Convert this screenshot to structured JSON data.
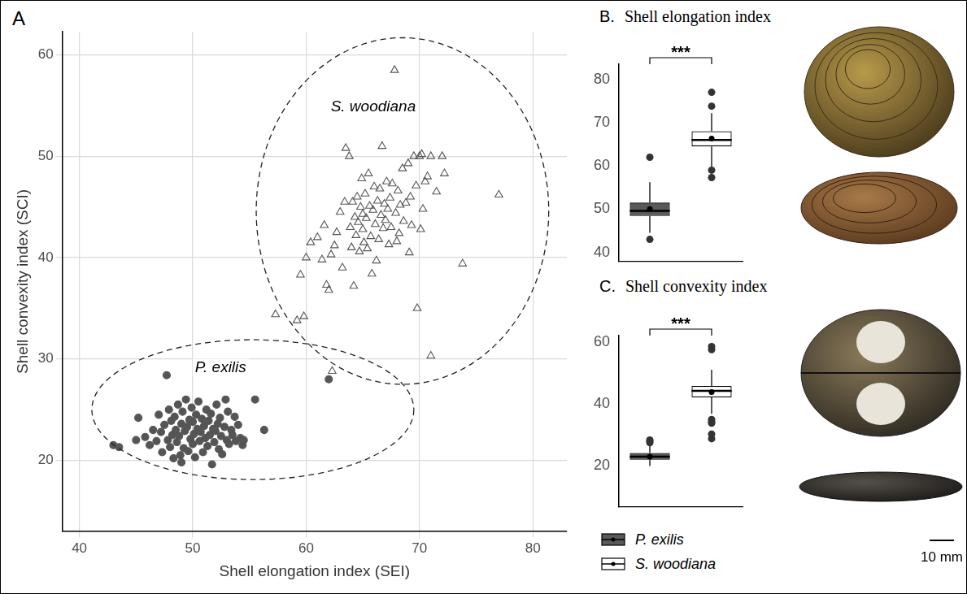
{
  "chart_data": [
    {
      "type": "scatter",
      "panel": "A",
      "x_label": "Shell elongation index (SEI)",
      "y_label": "Shell convexity index (SCI)",
      "xlim": [
        38.5,
        83
      ],
      "ylim": [
        13,
        62.3
      ],
      "xticks": [
        40,
        50,
        60,
        70,
        80
      ],
      "yticks": [
        20,
        30,
        40,
        50,
        60
      ],
      "grid": true,
      "series": [
        {
          "name": "P. exilis",
          "color": "#555555",
          "marker": "circle",
          "ellipse": {
            "center": [
              55.3,
              25.0
            ],
            "radii": [
              14.2,
              6.9
            ]
          },
          "x": [
            43,
            43.5,
            45,
            45.2,
            45.8,
            46.2,
            46.5,
            46.8,
            47,
            47.2,
            47.3,
            47.5,
            47.7,
            47.8,
            47.9,
            48,
            48.1,
            48.2,
            48.3,
            48.4,
            48.5,
            48.6,
            48.7,
            48.8,
            48.9,
            49,
            49,
            49.1,
            49.2,
            49.3,
            49.4,
            49.5,
            49.6,
            49.7,
            49.8,
            49.9,
            50,
            50,
            50.1,
            50.2,
            50.3,
            50.4,
            50.5,
            50.6,
            50.7,
            50.8,
            50.9,
            51,
            51.1,
            51.2,
            51.3,
            51.4,
            51.5,
            51.6,
            51.7,
            51.8,
            51.9,
            52,
            52.1,
            52.2,
            52.3,
            52.4,
            52.5,
            52.6,
            52.8,
            52.9,
            53,
            53.1,
            53.2,
            53.4,
            53.5,
            53.7,
            53.8,
            54,
            54.2,
            54.4,
            54.5,
            55.5,
            56.3,
            62
          ],
          "values": [
            21.5,
            21.3,
            22,
            24.2,
            22.3,
            21.5,
            23,
            21.9,
            24.5,
            22.8,
            20.8,
            23.5,
            28.4,
            22,
            25,
            21.3,
            23.9,
            22.5,
            20.2,
            24.3,
            23,
            21.8,
            25.5,
            22.4,
            20.5,
            23.6,
            19.8,
            24.8,
            21.2,
            22.9,
            26,
            23.3,
            20.9,
            24,
            22.1,
            25.2,
            21.6,
            23.8,
            22.6,
            20.3,
            24.5,
            23.1,
            25.8,
            21.9,
            22.8,
            24.1,
            20.8,
            23.4,
            22.2,
            25,
            21.4,
            23.9,
            22.5,
            24.6,
            19.6,
            23.1,
            21.8,
            22.9,
            25.5,
            23.6,
            21.1,
            24.2,
            22.4,
            20.6,
            23.3,
            26,
            22,
            24.8,
            21.6,
            23,
            22.5,
            24.3,
            21.9,
            23.5,
            22.2,
            21.5,
            22,
            26,
            23,
            28
          ]
        },
        {
          "name": "S. woodiana",
          "color": "#555555",
          "marker": "triangle-open",
          "ellipse": {
            "center": [
              68.5,
              44.6
            ],
            "radii": [
              12.9,
              17.1
            ]
          },
          "x": [
            57.3,
            59.2,
            59.8,
            59.5,
            60,
            60.4,
            61,
            61.4,
            61.6,
            61.8,
            62,
            62.2,
            62.3,
            62.5,
            62.7,
            63,
            63.2,
            63.4,
            63.5,
            63.8,
            63.9,
            64,
            64.1,
            64.2,
            64.3,
            64.4,
            64.5,
            64.6,
            64.7,
            64.8,
            64.9,
            65,
            65,
            65.1,
            65.2,
            65.3,
            65.4,
            65.5,
            65.6,
            65.7,
            65.8,
            65.9,
            66,
            66.1,
            66.2,
            66.3,
            66.4,
            66.5,
            66.6,
            66.7,
            66.8,
            66.9,
            67,
            67.1,
            67.2,
            67.3,
            67.4,
            67.5,
            67.6,
            67.8,
            67.9,
            68,
            68.1,
            68.2,
            68.3,
            68.5,
            68.6,
            68.8,
            69,
            69.1,
            69.2,
            69.3,
            69.5,
            69.7,
            69.8,
            70,
            70.1,
            70.2,
            70.3,
            70.5,
            70.7,
            71,
            71,
            71.5,
            72,
            72.2,
            73.8,
            77
          ],
          "values": [
            34.4,
            33.8,
            34.2,
            38.3,
            40,
            41.5,
            42,
            39.8,
            43.2,
            37.3,
            36.8,
            40.3,
            28.8,
            41.2,
            42.5,
            44.5,
            39,
            45.5,
            50.8,
            50,
            43,
            41,
            45.5,
            37.2,
            44,
            42.2,
            46,
            43.5,
            40.6,
            45,
            47.8,
            42.8,
            44.3,
            41.5,
            46.3,
            43.9,
            40.9,
            48.3,
            45.1,
            42.1,
            38.4,
            44.7,
            47,
            43.3,
            39.7,
            45.6,
            41.8,
            46.8,
            44.2,
            51,
            42.9,
            45.3,
            43.7,
            47.5,
            44.8,
            41.3,
            45.9,
            43,
            47.3,
            58.5,
            44.4,
            41.6,
            46.6,
            42.4,
            45.2,
            48.8,
            43.6,
            45.4,
            49.3,
            40.5,
            46,
            43.2,
            50,
            47.1,
            35,
            50,
            42.8,
            50.2,
            44.8,
            47.5,
            48,
            50,
            30.3,
            46.5,
            50,
            48.3,
            39.4,
            46.2
          ]
        }
      ]
    },
    {
      "type": "box",
      "panel": "B.",
      "title": "Shell elongation index",
      "ylim": [
        38,
        83.5
      ],
      "yticks": [
        40,
        50,
        60,
        70,
        80
      ],
      "grid": false,
      "tick_labels": "y",
      "significance": "***",
      "series": [
        {
          "name": "P. exilis",
          "color": "#595959",
          "q1": 48.4,
          "median": 49.6,
          "q3": 51.5,
          "whisker_low": 44.5,
          "whisker_high": 56.2,
          "mean": 50.0,
          "outliers": [
            43,
            62
          ]
        },
        {
          "name": "S. woodiana",
          "color": "#ffffff",
          "q1": 64.5,
          "median": 66,
          "q3": 68,
          "whisker_low": 59.8,
          "whisker_high": 72.2,
          "mean": 66.3,
          "outliers": [
            57.3,
            59,
            73.8,
            77
          ]
        }
      ]
    },
    {
      "type": "box",
      "panel": "C.",
      "title": "Shell convexity index",
      "ylim": [
        7,
        62
      ],
      "yticks": [
        20,
        40,
        60
      ],
      "grid": false,
      "tick_labels": "y",
      "significance": "***",
      "legend": "bottom",
      "annotations": [
        "10 mm"
      ],
      "series": [
        {
          "name": "P. exilis",
          "color": "#595959",
          "q1": 22,
          "median": 23,
          "q3": 24.2,
          "whisker_low": 20,
          "whisker_high": 26.5,
          "mean": 23,
          "outliers": [
            27.5,
            28,
            28.4
          ]
        },
        {
          "name": "S. woodiana",
          "color": "#ffffff",
          "q1": 42.1,
          "median": 44.2,
          "q3": 45.8,
          "whisker_low": 36.8,
          "whisker_high": 51,
          "mean": 43.8,
          "outliers": [
            28.8,
            30.3,
            33.8,
            34.2,
            35,
            57.5,
            58.5
          ]
        }
      ]
    }
  ]
}
